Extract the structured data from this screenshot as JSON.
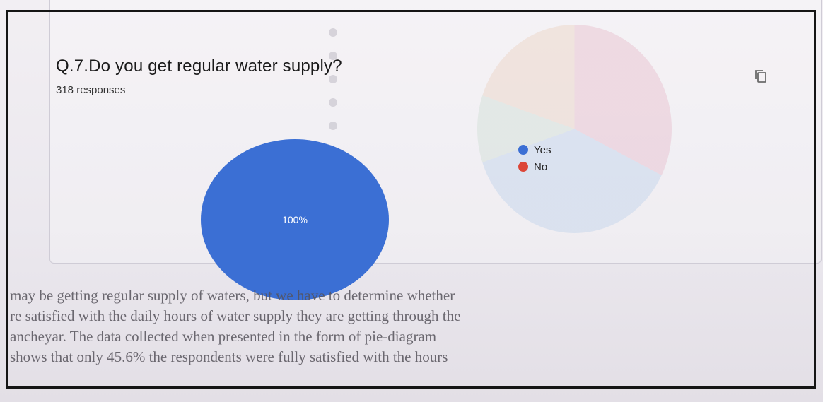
{
  "question": {
    "title": "Q.7.Do you get regular water supply?",
    "responses": "318 responses"
  },
  "actions": {
    "copy_icon": "copy-icon"
  },
  "chart_data": {
    "type": "pie",
    "title": "Q.7.Do you get regular water supply?",
    "subtitle": "318 responses",
    "categories": [
      "Yes",
      "No"
    ],
    "values": [
      100,
      0
    ],
    "value_labels": [
      "100%",
      ""
    ],
    "colors": [
      "#3b6fd4",
      "#dc4637"
    ],
    "legend_position": "right"
  },
  "background_text": {
    "lines": [
      "may be getting regular supply of waters, but we have to determine whether",
      "re satisfied with the daily hours of water supply they are getting through the",
      "ancheyar. The data collected when presented in the form of pie-diagram",
      "shows that only 45.6% the respondents were fully satisfied with the hours"
    ]
  }
}
